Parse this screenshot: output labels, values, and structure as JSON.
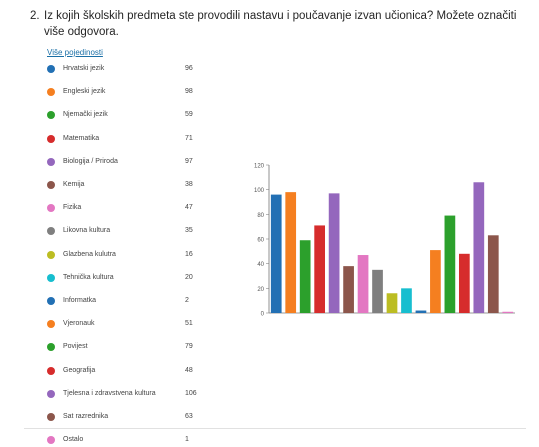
{
  "question": {
    "number": "2.",
    "text": "Iz kojih školskih predmeta ste provodili nastavu i poučavanje izvan učionica? Možete označiti više odgovora.",
    "details_link": "Više pojedinosti"
  },
  "chart_data": {
    "type": "bar",
    "categories": [
      "Hrvatski jezik",
      "Engleski jezik",
      "Njemački jezik",
      "Matematika",
      "Biologija / Priroda",
      "Kemija",
      "Fizika",
      "Likovna kultura",
      "Glazbena kulutra",
      "Tehnička kultura",
      "Informatka",
      "Vjeronauk",
      "Povijest",
      "Geografija",
      "Tjelesna i zdravstvena kultura",
      "Sat razrednika",
      "Ostalo"
    ],
    "values": [
      96,
      98,
      59,
      71,
      97,
      38,
      47,
      35,
      16,
      20,
      2,
      51,
      79,
      48,
      106,
      63,
      1
    ],
    "colors": [
      "#2270b4",
      "#f57f20",
      "#2ca02c",
      "#d62c2c",
      "#9467bd",
      "#8c564b",
      "#e377c2",
      "#7f7f7f",
      "#bcbd22",
      "#17becf",
      "#2270b4",
      "#f57f20",
      "#2ca02c",
      "#d62c2c",
      "#9467bd",
      "#8c564b",
      "#e377c2"
    ],
    "ylim": [
      0,
      120
    ],
    "yticks": [
      "0",
      "20",
      "40",
      "60",
      "80",
      "100",
      "120"
    ],
    "grid": false,
    "legend": "left"
  }
}
